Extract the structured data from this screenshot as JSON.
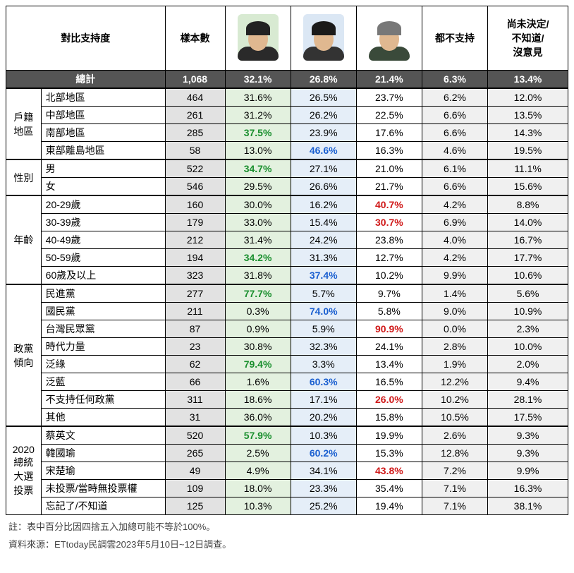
{
  "columns": {
    "main_header": "對比支持度",
    "sample": "樣本數",
    "none": "都不支持",
    "undecided": "尚未決定/\n不知道/\n沒意見"
  },
  "avatars": [
    {
      "bg": "#d8ead2",
      "hair": "#222222",
      "suit": "#2a2a2a"
    },
    {
      "bg": "#dbe7f4",
      "hair": "#1a1a1a",
      "suit": "#333333"
    },
    {
      "bg": "#ffffff",
      "hair": "#787878",
      "suit": "#3a4a3a"
    }
  ],
  "hl": {
    "c1": "#1a8f2e",
    "c2": "#1a5fd0",
    "c3": "#d01a1a"
  },
  "total_label": "總計",
  "total": {
    "sample": "1,068",
    "c1": "32.1%",
    "c2": "26.8%",
    "c3": "21.4%",
    "none": "6.3%",
    "und": "13.4%"
  },
  "groups": [
    {
      "label": "戶籍\n地區",
      "rows": [
        {
          "label": "北部地區",
          "sample": "464",
          "c1": "31.6%",
          "c2": "26.5%",
          "c3": "23.7%",
          "none": "6.2%",
          "und": "12.0%"
        },
        {
          "label": "中部地區",
          "sample": "261",
          "c1": "31.2%",
          "c2": "26.2%",
          "c3": "22.5%",
          "none": "6.6%",
          "und": "13.5%"
        },
        {
          "label": "南部地區",
          "sample": "285",
          "c1": "37.5%",
          "c2": "23.9%",
          "c3": "17.6%",
          "none": "6.6%",
          "und": "14.3%",
          "hl": "c1"
        },
        {
          "label": "東部離島地區",
          "sample": "58",
          "c1": "13.0%",
          "c2": "46.6%",
          "c3": "16.3%",
          "none": "4.6%",
          "und": "19.5%",
          "hl": "c2"
        }
      ]
    },
    {
      "label": "性別",
      "rows": [
        {
          "label": "男",
          "sample": "522",
          "c1": "34.7%",
          "c2": "27.1%",
          "c3": "21.0%",
          "none": "6.1%",
          "und": "11.1%",
          "hl": "c1"
        },
        {
          "label": "女",
          "sample": "546",
          "c1": "29.5%",
          "c2": "26.6%",
          "c3": "21.7%",
          "none": "6.6%",
          "und": "15.6%"
        }
      ]
    },
    {
      "label": "年齡",
      "rows": [
        {
          "label": "20-29歲",
          "sample": "160",
          "c1": "30.0%",
          "c2": "16.2%",
          "c3": "40.7%",
          "none": "4.2%",
          "und": "8.8%",
          "hl": "c3"
        },
        {
          "label": "30-39歲",
          "sample": "179",
          "c1": "33.0%",
          "c2": "15.4%",
          "c3": "30.7%",
          "none": "6.9%",
          "und": "14.0%",
          "hl": "c3"
        },
        {
          "label": "40-49歲",
          "sample": "212",
          "c1": "31.4%",
          "c2": "24.2%",
          "c3": "23.8%",
          "none": "4.0%",
          "und": "16.7%"
        },
        {
          "label": "50-59歲",
          "sample": "194",
          "c1": "34.2%",
          "c2": "31.3%",
          "c3": "12.7%",
          "none": "4.2%",
          "und": "17.7%",
          "hl": "c1"
        },
        {
          "label": "60歲及以上",
          "sample": "323",
          "c1": "31.8%",
          "c2": "37.4%",
          "c3": "10.2%",
          "none": "9.9%",
          "und": "10.6%",
          "hl": "c2"
        }
      ]
    },
    {
      "label": "政黨\n傾向",
      "rows": [
        {
          "label": "民進黨",
          "sample": "277",
          "c1": "77.7%",
          "c2": "5.7%",
          "c3": "9.7%",
          "none": "1.4%",
          "und": "5.6%",
          "hl": "c1"
        },
        {
          "label": "國民黨",
          "sample": "211",
          "c1": "0.3%",
          "c2": "74.0%",
          "c3": "5.8%",
          "none": "9.0%",
          "und": "10.9%",
          "hl": "c2"
        },
        {
          "label": "台灣民眾黨",
          "sample": "87",
          "c1": "0.9%",
          "c2": "5.9%",
          "c3": "90.9%",
          "none": "0.0%",
          "und": "2.3%",
          "hl": "c3"
        },
        {
          "label": "時代力量",
          "sample": "23",
          "c1": "30.8%",
          "c2": "32.3%",
          "c3": "24.1%",
          "none": "2.8%",
          "und": "10.0%"
        },
        {
          "label": "泛綠",
          "sample": "62",
          "c1": "79.4%",
          "c2": "3.3%",
          "c3": "13.4%",
          "none": "1.9%",
          "und": "2.0%",
          "hl": "c1"
        },
        {
          "label": "泛藍",
          "sample": "66",
          "c1": "1.6%",
          "c2": "60.3%",
          "c3": "16.5%",
          "none": "12.2%",
          "und": "9.4%",
          "hl": "c2"
        },
        {
          "label": "不支持任何政黨",
          "sample": "311",
          "c1": "18.6%",
          "c2": "17.1%",
          "c3": "26.0%",
          "none": "10.2%",
          "und": "28.1%",
          "hl": "c3"
        },
        {
          "label": "其他",
          "sample": "31",
          "c1": "36.0%",
          "c2": "20.2%",
          "c3": "15.8%",
          "none": "10.5%",
          "und": "17.5%"
        }
      ]
    },
    {
      "label": "2020\n總統\n大選\n投票",
      "rows": [
        {
          "label": "蔡英文",
          "sample": "520",
          "c1": "57.9%",
          "c2": "10.3%",
          "c3": "19.9%",
          "none": "2.6%",
          "und": "9.3%",
          "hl": "c1"
        },
        {
          "label": "韓國瑜",
          "sample": "265",
          "c1": "2.5%",
          "c2": "60.2%",
          "c3": "15.3%",
          "none": "12.8%",
          "und": "9.3%",
          "hl": "c2"
        },
        {
          "label": "宋楚瑜",
          "sample": "49",
          "c1": "4.9%",
          "c2": "34.1%",
          "c3": "43.8%",
          "none": "7.2%",
          "und": "9.9%",
          "hl": "c3"
        },
        {
          "label": "未投票/當時無投票權",
          "sample": "109",
          "c1": "18.0%",
          "c2": "23.3%",
          "c3": "35.4%",
          "none": "7.1%",
          "und": "16.3%"
        },
        {
          "label": "忘記了/不知道",
          "sample": "125",
          "c1": "10.3%",
          "c2": "25.2%",
          "c3": "19.4%",
          "none": "7.1%",
          "und": "38.1%"
        }
      ]
    }
  ],
  "footnotes": [
    "註：表中百分比因四捨五入加總可能不等於100%。",
    "資料來源：ETtoday民調雲2023年5月10日~12日調查。"
  ]
}
